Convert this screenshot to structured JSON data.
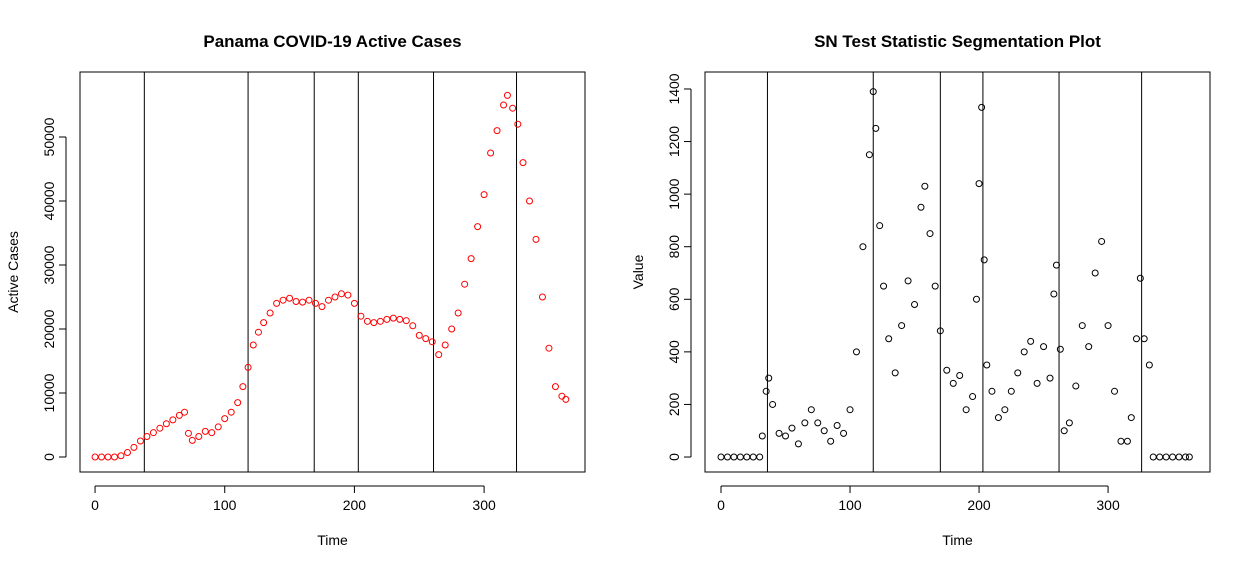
{
  "chart_data": [
    {
      "type": "scatter",
      "title": "Panama COVID-19 Active Cases",
      "x_label": "Time",
      "y_label": "Active Cases",
      "color": "#ff0000",
      "xlim": [
        -11.6,
        377.8
      ],
      "ylim": [
        -2344,
        60156
      ],
      "xticks": [
        0,
        100,
        200,
        300
      ],
      "yticks": [
        0,
        10000,
        20000,
        30000,
        40000,
        50000
      ],
      "changepoints": [
        38,
        118,
        169,
        203,
        261,
        325
      ],
      "x": [
        0,
        5,
        10,
        15,
        20,
        25,
        30,
        35,
        40,
        45,
        50,
        55,
        60,
        65,
        69,
        72,
        75,
        80,
        85,
        90,
        95,
        100,
        105,
        110,
        114,
        118,
        122,
        126,
        130,
        135,
        140,
        145,
        150,
        155,
        160,
        165,
        170,
        175,
        180,
        185,
        190,
        195,
        200,
        205,
        210,
        215,
        220,
        225,
        230,
        235,
        240,
        245,
        250,
        255,
        260,
        265,
        270,
        275,
        280,
        285,
        290,
        295,
        300,
        305,
        310,
        315,
        318,
        322,
        326,
        330,
        335,
        340,
        345,
        350,
        355,
        360,
        363
      ],
      "values": [
        0,
        0,
        0,
        0,
        200,
        700,
        1500,
        2500,
        3200,
        3800,
        4500,
        5200,
        5800,
        6500,
        7000,
        3700,
        2600,
        3200,
        4000,
        3800,
        4700,
        6000,
        7000,
        8500,
        11000,
        14000,
        17500,
        19500,
        21000,
        22500,
        24000,
        24500,
        24800,
        24300,
        24200,
        24500,
        24000,
        23500,
        24500,
        25000,
        25500,
        25300,
        24000,
        22000,
        21200,
        21000,
        21200,
        21500,
        21700,
        21500,
        21300,
        20500,
        19000,
        18500,
        18000,
        16000,
        17500,
        20000,
        22500,
        27000,
        31000,
        36000,
        41000,
        47500,
        51000,
        55000,
        56500,
        54500,
        52000,
        46000,
        40000,
        34000,
        25000,
        17000,
        11000,
        9500,
        9000
      ]
    },
    {
      "type": "scatter",
      "title": "SN Test Statistic Segmentation Plot",
      "x_label": "Time",
      "y_label": "Value",
      "color": "#000000",
      "xlim": [
        -12.4,
        379
      ],
      "ylim": [
        -57,
        1464.6
      ],
      "xticks": [
        0,
        100,
        200,
        300
      ],
      "yticks": [
        0,
        200,
        400,
        600,
        800,
        1000,
        1200,
        1400
      ],
      "changepoints": [
        36,
        118,
        170,
        203,
        262,
        326
      ],
      "x": [
        0,
        5,
        10,
        15,
        20,
        25,
        30,
        32,
        35,
        37,
        40,
        45,
        50,
        55,
        60,
        65,
        70,
        75,
        80,
        85,
        90,
        95,
        100,
        105,
        110,
        115,
        118,
        120,
        123,
        126,
        130,
        135,
        140,
        145,
        150,
        155,
        158,
        162,
        166,
        170,
        175,
        180,
        185,
        190,
        195,
        198,
        200,
        202,
        204,
        206,
        210,
        215,
        220,
        225,
        230,
        235,
        240,
        245,
        250,
        255,
        258,
        260,
        263,
        266,
        270,
        275,
        280,
        285,
        290,
        295,
        300,
        305,
        310,
        315,
        318,
        322,
        325,
        328,
        332,
        335,
        340,
        345,
        350,
        355,
        360,
        363
      ],
      "values": [
        0,
        0,
        0,
        0,
        0,
        0,
        0,
        80,
        250,
        300,
        200,
        90,
        80,
        110,
        50,
        130,
        180,
        130,
        100,
        60,
        120,
        90,
        180,
        400,
        800,
        1150,
        1390,
        1250,
        880,
        650,
        450,
        320,
        500,
        670,
        580,
        950,
        1030,
        850,
        650,
        480,
        330,
        280,
        310,
        180,
        230,
        600,
        1040,
        1330,
        750,
        350,
        250,
        150,
        180,
        250,
        320,
        400,
        440,
        280,
        420,
        300,
        620,
        730,
        410,
        100,
        130,
        270,
        500,
        420,
        700,
        820,
        500,
        250,
        60,
        60,
        150,
        450,
        680,
        450,
        350,
        0,
        0,
        0,
        0,
        0,
        0,
        0
      ]
    }
  ]
}
